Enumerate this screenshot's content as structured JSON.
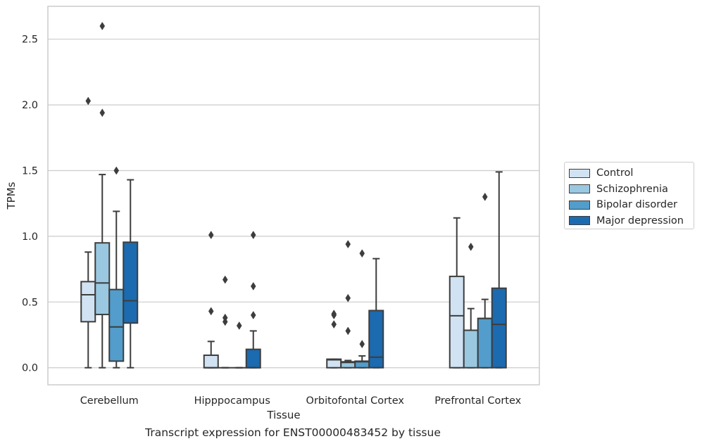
{
  "chart_data": {
    "type": "box",
    "xlabel": "Tissue",
    "ylabel": "TPMs",
    "ylim": [
      -0.13,
      2.75
    ],
    "yticks": [
      0.0,
      0.5,
      1.0,
      1.5,
      2.0,
      2.5
    ],
    "ytick_labels": [
      "0.0",
      "0.5",
      "1.0",
      "1.5",
      "2.0",
      "2.5"
    ],
    "grid": true,
    "legend_position": "right",
    "categories": [
      "Cerebellum",
      "Hipppocampus",
      "Orbitofontal Cortex",
      "Prefrontal Cortex"
    ],
    "series": [
      {
        "name": "Control",
        "color": "#d1e2f2",
        "boxes": [
          {
            "whislo": 0.0,
            "q1": 0.35,
            "med": 0.555,
            "q3": 0.655,
            "whishi": 0.88,
            "fliers": [
              2.03
            ]
          },
          {
            "whislo": 0.0,
            "q1": 0.0,
            "med": 0.0,
            "q3": 0.095,
            "whishi": 0.2,
            "fliers": [
              0.43,
              1.01
            ]
          },
          {
            "whislo": 0.0,
            "q1": 0.0,
            "med": 0.06,
            "q3": 0.065,
            "whishi": 0.065,
            "fliers": [
              0.33,
              0.4,
              0.41
            ]
          },
          {
            "whislo": 0.0,
            "q1": 0.0,
            "med": 0.395,
            "q3": 0.695,
            "whishi": 1.14,
            "fliers": []
          }
        ]
      },
      {
        "name": "Schizophrenia",
        "color": "#9ac8e0",
        "boxes": [
          {
            "whislo": 0.0,
            "q1": 0.405,
            "med": 0.645,
            "q3": 0.95,
            "whishi": 1.47,
            "fliers": [
              1.94,
              2.6
            ]
          },
          {
            "whislo": 0.0,
            "q1": 0.0,
            "med": 0.0,
            "q3": 0.0,
            "whishi": 0.0,
            "fliers": [
              0.35,
              0.38,
              0.67
            ]
          },
          {
            "whislo": 0.0,
            "q1": 0.0,
            "med": 0.04,
            "q3": 0.045,
            "whishi": 0.055,
            "fliers": [
              0.28,
              0.53,
              0.94
            ]
          },
          {
            "whislo": 0.0,
            "q1": 0.0,
            "med": 0.285,
            "q3": 0.285,
            "whishi": 0.45,
            "fliers": [
              0.92
            ]
          }
        ]
      },
      {
        "name": "Bipolar disorder",
        "color": "#529dcc",
        "boxes": [
          {
            "whislo": 0.0,
            "q1": 0.05,
            "med": 0.31,
            "q3": 0.595,
            "whishi": 1.19,
            "fliers": [
              1.5
            ]
          },
          {
            "whislo": 0.0,
            "q1": 0.0,
            "med": 0.0,
            "q3": 0.0,
            "whishi": 0.0,
            "fliers": [
              0.32
            ]
          },
          {
            "whislo": 0.0,
            "q1": 0.0,
            "med": 0.045,
            "q3": 0.05,
            "whishi": 0.09,
            "fliers": [
              0.18,
              0.87
            ]
          },
          {
            "whislo": 0.0,
            "q1": 0.0,
            "med": 0.375,
            "q3": 0.375,
            "whishi": 0.52,
            "fliers": [
              1.3
            ]
          }
        ]
      },
      {
        "name": "Major depression",
        "color": "#1c6aaf",
        "boxes": [
          {
            "whislo": 0.0,
            "q1": 0.34,
            "med": 0.51,
            "q3": 0.955,
            "whishi": 1.43,
            "fliers": []
          },
          {
            "whislo": 0.0,
            "q1": 0.0,
            "med": 0.0,
            "q3": 0.14,
            "whishi": 0.28,
            "fliers": [
              0.4,
              0.62,
              1.01
            ]
          },
          {
            "whislo": 0.0,
            "q1": 0.0,
            "med": 0.08,
            "q3": 0.435,
            "whishi": 0.83,
            "fliers": []
          },
          {
            "whislo": 0.0,
            "q1": 0.0,
            "med": 0.33,
            "q3": 0.605,
            "whishi": 1.49,
            "fliers": []
          }
        ]
      }
    ]
  },
  "caption": "Transcript expression for ENST00000483452 by tissue"
}
